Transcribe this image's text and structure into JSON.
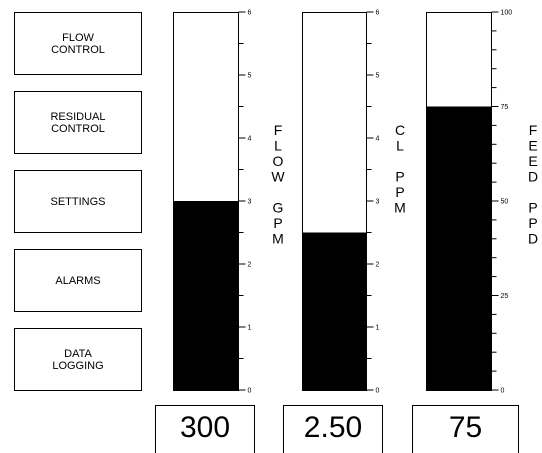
{
  "buttons": [
    {
      "label": "FLOW\nCONTROL",
      "name": "flow-control-button"
    },
    {
      "label": "RESIDUAL\nCONTROL",
      "name": "residual-control-button"
    },
    {
      "label": "SETTINGS",
      "name": "settings-button"
    },
    {
      "label": "ALARMS",
      "name": "alarms-button"
    },
    {
      "label": "DATA\nLOGGING",
      "name": "data-logging-button"
    }
  ],
  "gauges": [
    {
      "name": "flow-gauge",
      "label": "FLOW GPM",
      "label_lines": [
        "F",
        "L",
        "O",
        "W",
        "",
        "G",
        "P",
        "M"
      ],
      "min": 0,
      "max": 6,
      "value": 3.0,
      "tick_labels": [
        "0",
        "1",
        "2",
        "3",
        "4",
        "5",
        "6"
      ],
      "readout": "300"
    },
    {
      "name": "cl-gauge",
      "label": "CL PPM",
      "label_lines": [
        "C",
        "L",
        "",
        "P",
        "P",
        "M"
      ],
      "min": 0,
      "max": 6,
      "value": 2.5,
      "tick_labels": [
        "0",
        "1",
        "2",
        "3",
        "4",
        "5",
        "6"
      ],
      "readout": "2.50"
    },
    {
      "name": "feed-gauge",
      "label": "FEED PPD",
      "label_lines": [
        "F",
        "E",
        "E",
        "D",
        "",
        "P",
        "P",
        "D"
      ],
      "min": 0,
      "max": 100,
      "value": 75,
      "tick_labels": [
        "0",
        "25",
        "50",
        "75",
        "100"
      ],
      "readout": "75"
    }
  ],
  "colors": {
    "fill": "#000000",
    "background": "#ffffff",
    "border": "#000000"
  }
}
